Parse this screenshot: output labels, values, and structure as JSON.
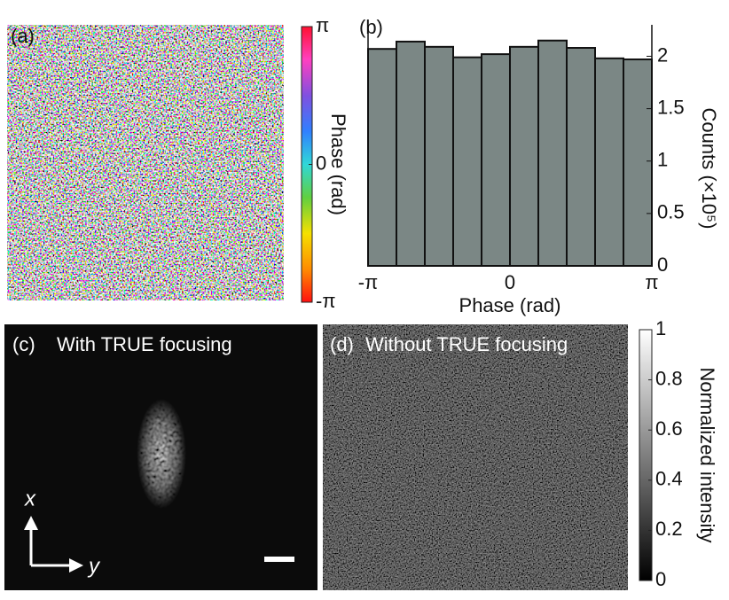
{
  "chart_data": [
    {
      "type": "image",
      "label": "(a)",
      "ylabel": "Phase (rad)",
      "ylim": [
        -3.14159,
        3.14159
      ],
      "yticks": [
        {
          "value": -3.14159,
          "label": "-π"
        },
        0,
        {
          "value": 3.14159,
          "label": "π"
        }
      ],
      "colormap": "phase"
    },
    {
      "type": "histogram",
      "label": "(b)",
      "xlabel": "Phase (rad)",
      "ylabel": "Counts (×10⁵)",
      "color": "#7b8785",
      "bins": [
        -3.14159,
        -2.51327,
        -1.88496,
        -1.25664,
        -0.62832,
        0,
        0.62832,
        1.25664,
        1.88496,
        2.51327,
        3.14159
      ],
      "values": [
        2.07,
        2.14,
        2.09,
        1.99,
        2.02,
        2.09,
        2.15,
        2.08,
        1.98,
        1.97
      ],
      "xlim": [
        -3.14159,
        3.14159
      ],
      "xticks": [
        {
          "value": -3.14159,
          "label": "-π"
        },
        0,
        {
          "value": 3.14159,
          "label": "π"
        }
      ],
      "ylim": [
        0,
        2.3
      ],
      "yticks": [
        0,
        0.5,
        1,
        1.5,
        2
      ]
    },
    {
      "type": "image",
      "label": "(c)",
      "title": "With TRUE focusing",
      "xlabel": "x",
      "ylabel": "y"
    },
    {
      "type": "image",
      "label": "(d)",
      "title": "Without TRUE focusing",
      "ylabel": "Normalized intensity",
      "ylim": [
        0,
        1
      ],
      "yticks": [
        0,
        0.2,
        0.4,
        0.6,
        0.8,
        1
      ],
      "colormap": "gray"
    }
  ]
}
